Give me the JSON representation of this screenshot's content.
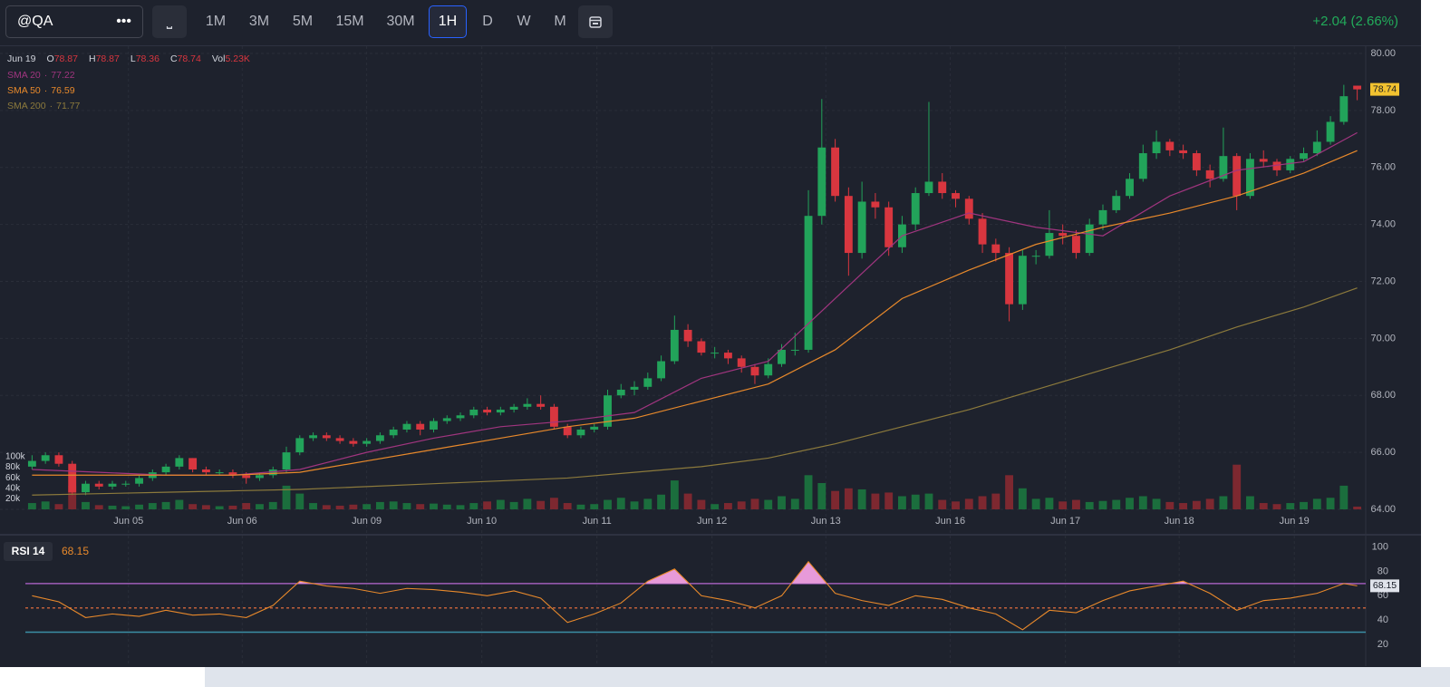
{
  "toolbar": {
    "symbol": "@QA",
    "menu": "•••",
    "style": "⎵",
    "intervals": [
      "1M",
      "3M",
      "5M",
      "15M",
      "30M",
      "1H",
      "D",
      "W",
      "M"
    ],
    "active": "1H",
    "change": "+2.04 (2.66%)"
  },
  "chart_data": {
    "type": "candlestick",
    "legend": {
      "date": "Jun 19",
      "items": [
        {
          "label": "O",
          "value": 78.87
        },
        {
          "label": "H",
          "value": 78.87
        },
        {
          "label": "L",
          "value": 78.36
        },
        {
          "label": "C",
          "value": 78.74
        },
        {
          "label": "Vol",
          "value": "5.23K"
        }
      ]
    },
    "up_color": "#22a35a",
    "down_color": "#d8363f",
    "up_volume_color": "#1b6e3d",
    "down_volume_color": "#7d2830",
    "xlim": [
      -0.5,
      99.5
    ],
    "ylim": [
      64,
      80
    ],
    "yticks": [
      {
        "value": 64,
        "label": "64.00"
      },
      {
        "value": 66,
        "label": "66.00"
      },
      {
        "value": 68,
        "label": "68.00"
      },
      {
        "value": 70,
        "label": "70.00"
      },
      {
        "value": 72,
        "label": "72.00"
      },
      {
        "value": 74,
        "label": "74.00"
      },
      {
        "value": 76,
        "label": "76.00"
      },
      {
        "value": 78,
        "label": "78.00"
      },
      {
        "value": 80,
        "label": "80.00"
      }
    ],
    "xticks": [
      {
        "value": 7.2,
        "label": "Jun 05"
      },
      {
        "value": 15.7,
        "label": "Jun 06"
      },
      {
        "value": 25,
        "label": "Jun 09"
      },
      {
        "value": 33.6,
        "label": "Jun 10"
      },
      {
        "value": 42.2,
        "label": "Jun 11"
      },
      {
        "value": 50.8,
        "label": "Jun 12"
      },
      {
        "value": 59.3,
        "label": "Jun 13"
      },
      {
        "value": 68.6,
        "label": "Jun 16"
      },
      {
        "value": 77.2,
        "label": "Jun 17"
      },
      {
        "value": 85.7,
        "label": "Jun 18"
      },
      {
        "value": 94.3,
        "label": "Jun 19"
      }
    ],
    "grid": true,
    "volume_ylim": [
      0,
      100000
    ],
    "volume_ticks": [
      {
        "value": 20000,
        "label": "20k"
      },
      {
        "value": 40000,
        "label": "40k"
      },
      {
        "value": 60000,
        "label": "60k"
      },
      {
        "value": 80000,
        "label": "80k"
      },
      {
        "value": 100000,
        "label": "100k"
      }
    ],
    "last_price": 78.74,
    "candles": [
      [
        65.5,
        65.9,
        65.4,
        65.7,
        12000
      ],
      [
        65.7,
        66.0,
        65.6,
        65.9,
        15000
      ],
      [
        65.9,
        66.0,
        65.5,
        65.6,
        10000
      ],
      [
        65.6,
        65.7,
        64.5,
        64.6,
        45000
      ],
      [
        64.6,
        65.0,
        64.5,
        64.9,
        14000
      ],
      [
        64.9,
        65.0,
        64.7,
        64.8,
        8000
      ],
      [
        64.8,
        65.0,
        64.7,
        64.9,
        7000
      ],
      [
        64.9,
        65.0,
        64.8,
        64.9,
        6000
      ],
      [
        64.9,
        65.2,
        64.8,
        65.1,
        9000
      ],
      [
        65.1,
        65.4,
        65.0,
        65.3,
        12000
      ],
      [
        65.3,
        65.6,
        65.2,
        65.5,
        14000
      ],
      [
        65.5,
        65.9,
        65.4,
        65.8,
        18000
      ],
      [
        65.8,
        65.8,
        65.3,
        65.4,
        10000
      ],
      [
        65.4,
        65.5,
        65.2,
        65.3,
        8000
      ],
      [
        65.3,
        65.4,
        65.2,
        65.3,
        6000
      ],
      [
        65.3,
        65.4,
        65.1,
        65.2,
        7000
      ],
      [
        65.2,
        65.3,
        64.9,
        65.1,
        12000
      ],
      [
        65.1,
        65.3,
        65.0,
        65.2,
        10000
      ],
      [
        65.2,
        65.5,
        65.1,
        65.4,
        14000
      ],
      [
        65.4,
        66.2,
        65.3,
        66.0,
        45000
      ],
      [
        66.0,
        66.6,
        65.9,
        66.5,
        30000
      ],
      [
        66.5,
        66.7,
        66.4,
        66.6,
        12000
      ],
      [
        66.6,
        66.7,
        66.4,
        66.5,
        8000
      ],
      [
        66.5,
        66.6,
        66.3,
        66.4,
        7000
      ],
      [
        66.4,
        66.5,
        66.2,
        66.3,
        9000
      ],
      [
        66.3,
        66.5,
        66.2,
        66.4,
        10000
      ],
      [
        66.4,
        66.7,
        66.3,
        66.6,
        14000
      ],
      [
        66.6,
        66.9,
        66.5,
        66.8,
        15000
      ],
      [
        66.8,
        67.1,
        66.7,
        67.0,
        12000
      ],
      [
        67.0,
        67.1,
        66.6,
        66.8,
        10000
      ],
      [
        66.8,
        67.2,
        66.7,
        67.1,
        11000
      ],
      [
        67.1,
        67.3,
        67.0,
        67.2,
        9000
      ],
      [
        67.2,
        67.4,
        67.1,
        67.3,
        8000
      ],
      [
        67.3,
        67.6,
        67.2,
        67.5,
        12000
      ],
      [
        67.5,
        67.6,
        67.3,
        67.4,
        15000
      ],
      [
        67.4,
        67.6,
        67.3,
        67.5,
        18000
      ],
      [
        67.5,
        67.7,
        67.4,
        67.6,
        14000
      ],
      [
        67.6,
        67.9,
        67.5,
        67.7,
        20000
      ],
      [
        67.7,
        68.0,
        67.5,
        67.6,
        16000
      ],
      [
        67.6,
        67.7,
        66.8,
        66.9,
        22000
      ],
      [
        66.9,
        67.0,
        66.5,
        66.6,
        12000
      ],
      [
        66.6,
        66.9,
        66.5,
        66.8,
        9000
      ],
      [
        66.8,
        67.0,
        66.7,
        66.9,
        10000
      ],
      [
        66.9,
        68.2,
        66.8,
        68.0,
        18000
      ],
      [
        68.0,
        68.4,
        67.9,
        68.2,
        22000
      ],
      [
        68.2,
        68.5,
        68.0,
        68.3,
        15000
      ],
      [
        68.3,
        68.8,
        68.2,
        68.6,
        20000
      ],
      [
        68.6,
        69.4,
        68.5,
        69.2,
        28000
      ],
      [
        69.2,
        70.8,
        69.1,
        70.3,
        55000
      ],
      [
        70.3,
        70.5,
        69.7,
        69.9,
        30000
      ],
      [
        69.9,
        70.0,
        69.4,
        69.5,
        18000
      ],
      [
        69.5,
        69.7,
        69.3,
        69.5,
        10000
      ],
      [
        69.5,
        69.6,
        69.1,
        69.3,
        12000
      ],
      [
        69.3,
        69.4,
        68.8,
        69.0,
        15000
      ],
      [
        69.0,
        69.1,
        68.4,
        68.7,
        20000
      ],
      [
        68.7,
        69.3,
        68.6,
        69.1,
        18000
      ],
      [
        69.1,
        69.8,
        69.0,
        69.6,
        25000
      ],
      [
        69.6,
        70.2,
        69.4,
        69.6,
        20000
      ],
      [
        69.6,
        75.2,
        69.5,
        74.3,
        65000
      ],
      [
        74.3,
        78.4,
        74.0,
        76.7,
        50000
      ],
      [
        76.7,
        77.0,
        74.8,
        75.0,
        35000
      ],
      [
        75.0,
        75.3,
        72.2,
        73.0,
        40000
      ],
      [
        73.0,
        75.5,
        72.8,
        74.8,
        38000
      ],
      [
        74.8,
        75.1,
        74.2,
        74.6,
        30000
      ],
      [
        74.6,
        74.8,
        72.9,
        73.2,
        32000
      ],
      [
        73.2,
        74.3,
        73.0,
        74.0,
        25000
      ],
      [
        74.0,
        75.3,
        73.8,
        75.1,
        28000
      ],
      [
        75.1,
        78.3,
        75.0,
        75.5,
        30000
      ],
      [
        75.5,
        75.8,
        74.9,
        75.1,
        18000
      ],
      [
        75.1,
        75.2,
        74.6,
        74.9,
        15000
      ],
      [
        74.9,
        75.0,
        74.0,
        74.2,
        20000
      ],
      [
        74.2,
        74.4,
        73.0,
        73.3,
        25000
      ],
      [
        73.3,
        73.5,
        72.7,
        73.0,
        30000
      ],
      [
        73.0,
        73.2,
        70.6,
        71.2,
        65000
      ],
      [
        71.2,
        73.1,
        71.0,
        72.9,
        40000
      ],
      [
        72.9,
        73.1,
        72.6,
        72.9,
        20000
      ],
      [
        72.9,
        74.5,
        72.8,
        73.7,
        22000
      ],
      [
        73.7,
        74.0,
        73.3,
        73.6,
        15000
      ],
      [
        73.6,
        73.8,
        72.8,
        73.0,
        18000
      ],
      [
        73.0,
        74.2,
        72.9,
        74.0,
        14000
      ],
      [
        74.0,
        74.7,
        73.8,
        74.5,
        16000
      ],
      [
        74.5,
        75.2,
        74.4,
        75.0,
        18000
      ],
      [
        75.0,
        75.8,
        74.9,
        75.6,
        22000
      ],
      [
        75.6,
        76.8,
        75.5,
        76.5,
        25000
      ],
      [
        76.5,
        77.3,
        76.3,
        76.9,
        20000
      ],
      [
        76.9,
        77.0,
        76.4,
        76.6,
        14000
      ],
      [
        76.6,
        76.8,
        76.3,
        76.5,
        12000
      ],
      [
        76.5,
        76.6,
        75.7,
        75.9,
        16000
      ],
      [
        75.9,
        76.1,
        75.3,
        75.6,
        20000
      ],
      [
        75.6,
        77.4,
        75.5,
        76.4,
        25000
      ],
      [
        76.4,
        76.5,
        74.5,
        75.0,
        85000
      ],
      [
        75.0,
        76.5,
        74.9,
        76.3,
        25000
      ],
      [
        76.3,
        76.6,
        76.0,
        76.2,
        12000
      ],
      [
        76.2,
        76.3,
        75.7,
        75.9,
        10000
      ],
      [
        75.9,
        76.4,
        75.8,
        76.3,
        12000
      ],
      [
        76.3,
        76.7,
        76.2,
        76.5,
        14000
      ],
      [
        76.5,
        77.3,
        76.4,
        76.9,
        20000
      ],
      [
        76.9,
        77.8,
        76.8,
        77.6,
        22000
      ],
      [
        77.6,
        78.9,
        77.5,
        78.5,
        45000
      ],
      [
        78.87,
        78.87,
        78.36,
        78.74,
        5230
      ]
    ],
    "series": [
      {
        "name": "SMA 20",
        "color": "#a0357f",
        "x": [
          0,
          5,
          10,
          15,
          20,
          25,
          30,
          35,
          40,
          45,
          50,
          55,
          60,
          65,
          70,
          75,
          80,
          85,
          90,
          95,
          99
        ],
        "values": [
          65.4,
          65.3,
          65.2,
          65.2,
          65.4,
          66.0,
          66.5,
          66.9,
          67.1,
          67.4,
          68.6,
          69.2,
          71.4,
          73.6,
          74.4,
          73.9,
          73.6,
          75.0,
          75.9,
          76.2,
          77.22
        ]
      },
      {
        "name": "SMA 50",
        "color": "#e8892b",
        "x": [
          0,
          5,
          10,
          15,
          20,
          25,
          30,
          35,
          40,
          45,
          50,
          55,
          60,
          65,
          70,
          75,
          80,
          85,
          90,
          95,
          99
        ],
        "values": [
          65.2,
          65.2,
          65.2,
          65.2,
          65.3,
          65.7,
          66.1,
          66.5,
          66.9,
          67.2,
          67.8,
          68.4,
          69.6,
          71.4,
          72.4,
          73.3,
          73.9,
          74.4,
          75.0,
          75.8,
          76.59
        ]
      },
      {
        "name": "SMA 200",
        "color": "#8c7a3c",
        "x": [
          0,
          5,
          10,
          15,
          20,
          25,
          30,
          35,
          40,
          45,
          50,
          55,
          60,
          65,
          70,
          75,
          80,
          85,
          90,
          95,
          99
        ],
        "values": [
          64.5,
          64.55,
          64.6,
          64.65,
          64.7,
          64.8,
          64.9,
          65.0,
          65.1,
          65.3,
          65.5,
          65.8,
          66.3,
          66.9,
          67.5,
          68.2,
          68.9,
          69.6,
          70.4,
          71.1,
          71.77
        ]
      }
    ],
    "rsi": {
      "name": "RSI 14",
      "color": "#e8892b",
      "fill_color": "#e79ad9",
      "last": 68.15,
      "ylim": [
        2,
        105
      ],
      "yticks": [
        20,
        40,
        60,
        80,
        100
      ],
      "levels": [
        {
          "value": 70,
          "color": "#9b59b6"
        },
        {
          "value": 50,
          "color": "#c0603a"
        },
        {
          "value": 30,
          "color": "#3b8ea5"
        }
      ],
      "x": [
        0,
        2,
        4,
        6,
        8,
        10,
        12,
        14,
        16,
        18,
        20,
        22,
        24,
        26,
        28,
        30,
        32,
        34,
        36,
        38,
        40,
        42,
        44,
        46,
        48,
        50,
        52,
        54,
        56,
        58,
        60,
        62,
        64,
        66,
        68,
        70,
        72,
        74,
        76,
        78,
        80,
        82,
        84,
        86,
        88,
        90,
        92,
        94,
        96,
        98,
        99
      ],
      "values": [
        60,
        55,
        42,
        45,
        43,
        48,
        44,
        45,
        42,
        52,
        72,
        68,
        66,
        62,
        66,
        65,
        63,
        60,
        64,
        58,
        38,
        45,
        54,
        72,
        82,
        60,
        56,
        50,
        60,
        88,
        62,
        56,
        52,
        60,
        57,
        50,
        45,
        32,
        48,
        46,
        56,
        64,
        68,
        72,
        62,
        48,
        56,
        58,
        62,
        70,
        68.15
      ]
    }
  }
}
